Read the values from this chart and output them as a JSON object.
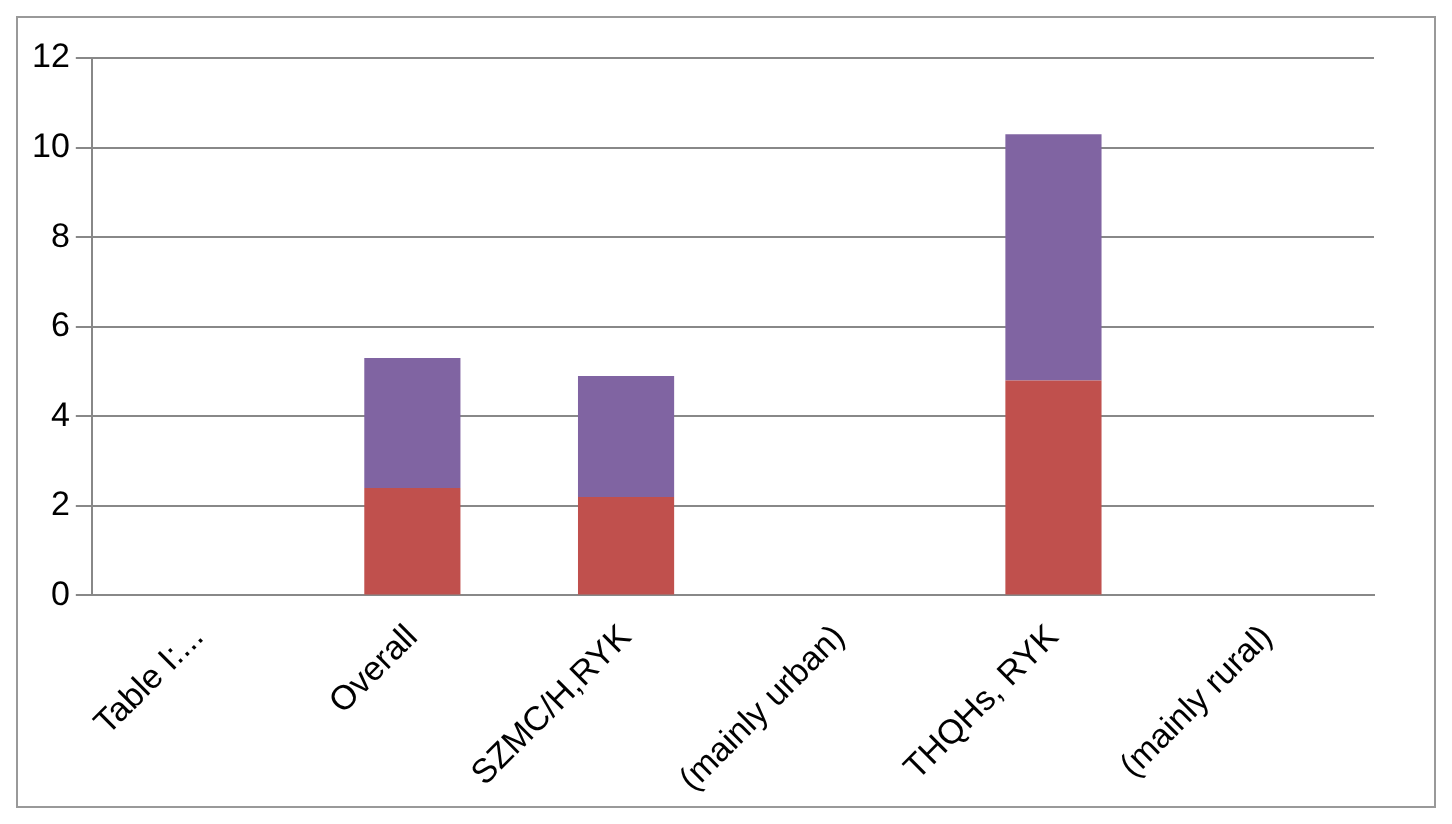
{
  "chart_data": {
    "type": "bar",
    "stacked": true,
    "categories": [
      "Table I:...",
      "Overall",
      "SZMC/H,RYK",
      "(mainly urban)",
      "THQHs, RYK",
      "(mainly rural)"
    ],
    "series": [
      {
        "color": "#c0504d",
        "values": [
          null,
          2.4,
          2.2,
          null,
          4.8,
          null
        ]
      },
      {
        "color": "#8064a2",
        "values": [
          null,
          2.9,
          2.7,
          null,
          5.5,
          null
        ]
      }
    ],
    "ylim": [
      0,
      12
    ],
    "yticks": [
      0,
      2,
      4,
      6,
      8,
      10,
      12
    ],
    "grid": "y",
    "legend": false
  }
}
